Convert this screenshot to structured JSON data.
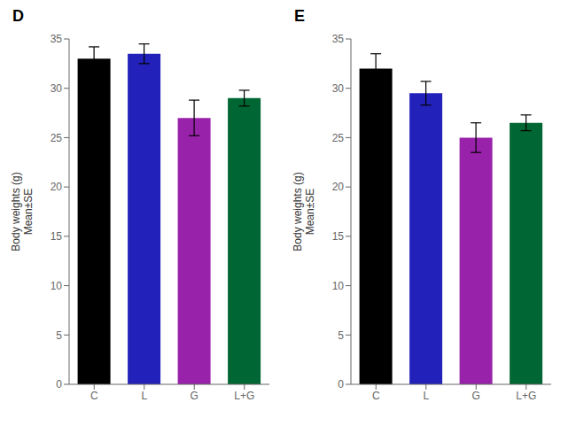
{
  "chart_data": [
    {
      "type": "bar",
      "title": "D",
      "categories": [
        "C",
        "L",
        "G",
        "L+G"
      ],
      "values": [
        33.0,
        33.5,
        27.0,
        29.0
      ],
      "errors": [
        1.2,
        1.0,
        1.8,
        0.8
      ],
      "colors": [
        "#000000",
        "#2222BB",
        "#9922AA",
        "#006633"
      ],
      "ylabel": "Body weights (g)\nMean±SE",
      "ylim": [
        0,
        35
      ],
      "yticks": [
        0,
        5,
        10,
        15,
        20,
        25,
        30,
        35
      ],
      "grid": false
    },
    {
      "type": "bar",
      "title": "E",
      "categories": [
        "C",
        "L",
        "G",
        "L+G"
      ],
      "values": [
        32.0,
        29.5,
        25.0,
        26.5
      ],
      "errors": [
        1.5,
        1.2,
        1.5,
        0.8
      ],
      "colors": [
        "#000000",
        "#2222BB",
        "#9922AA",
        "#006633"
      ],
      "ylabel": "Body weights (g)\nMean±SE",
      "ylim": [
        0,
        35
      ],
      "yticks": [
        0,
        5,
        10,
        15,
        20,
        25,
        30,
        35
      ],
      "grid": false
    }
  ]
}
